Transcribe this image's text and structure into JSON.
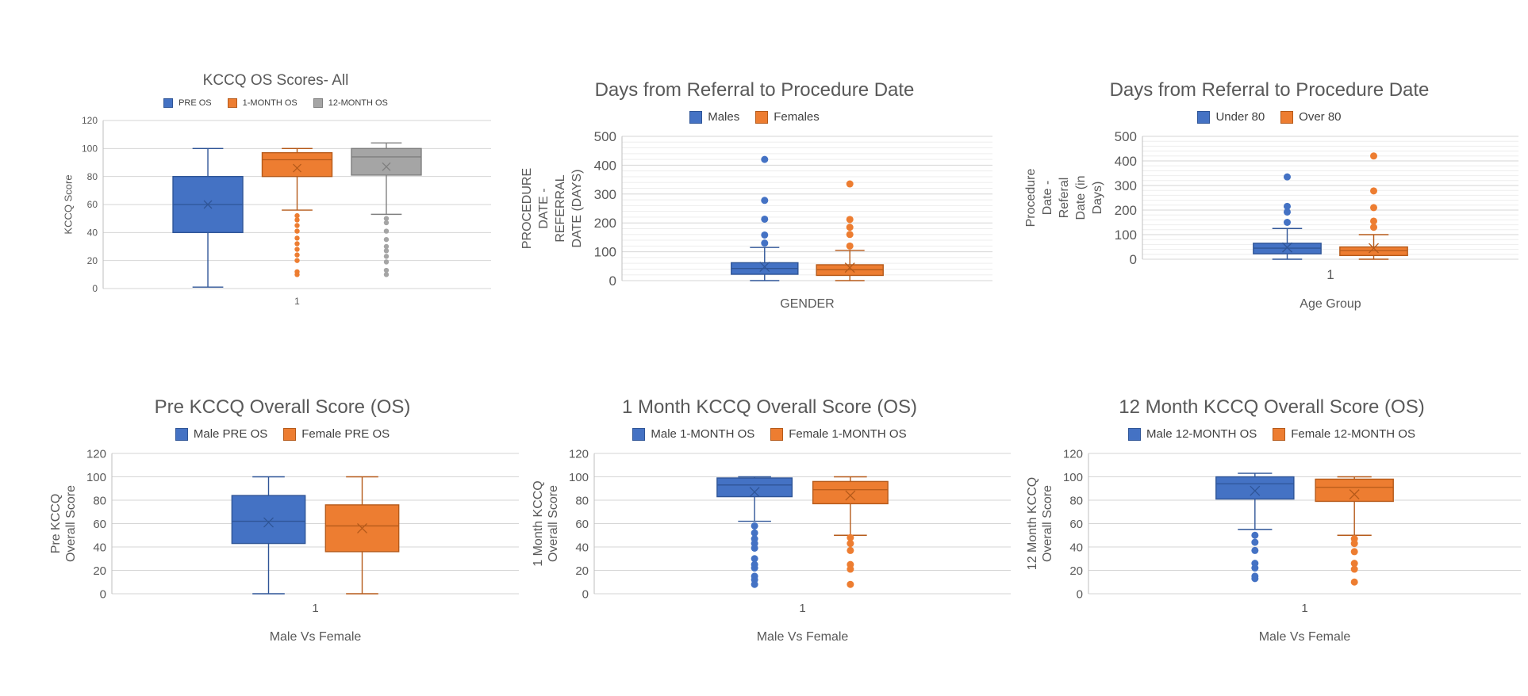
{
  "page": {
    "background": "#FFFFFF"
  },
  "colors": {
    "blue": "#4472C4",
    "blue_border": "#2F5597",
    "orange": "#ED7D31",
    "orange_border": "#B55A1A",
    "gray": "#A5A5A5",
    "gray_border": "#7F7F7F",
    "title_text": "#595959",
    "tick_text": "#595959",
    "legend_text": "#404040",
    "grid_major": "#D6D6D6",
    "grid_minor": "#EDEDED",
    "axis_line": "#BFBFBF"
  },
  "chart_data": [
    {
      "id": "kccq-all",
      "type": "boxplot",
      "title": "KCCQ OS Scores- All",
      "ylabel_lines": [
        "KCCQ Score"
      ],
      "xlabel": "",
      "x_tick": "1",
      "ylim": [
        0,
        120
      ],
      "ytick_step": 20,
      "minor_step": 0,
      "grid": true,
      "legend_position": "top",
      "series": [
        {
          "name": "PRE OS",
          "color_key": "blue",
          "q1": 40,
          "median": 60,
          "q3": 80,
          "mean": 60,
          "whisker_low": 1,
          "whisker_high": 100,
          "outliers": []
        },
        {
          "name": "1-MONTH OS",
          "color_key": "orange",
          "q1": 80,
          "median": 92,
          "q3": 97,
          "mean": 86,
          "whisker_low": 56,
          "whisker_high": 100,
          "outliers": [
            52,
            49,
            45,
            41,
            36,
            32,
            28,
            24,
            20,
            12,
            10
          ]
        },
        {
          "name": "12-MONTH OS",
          "color_key": "gray",
          "q1": 81,
          "median": 94,
          "q3": 100,
          "mean": 87,
          "whisker_low": 53,
          "whisker_high": 104,
          "outliers": [
            50,
            47,
            41,
            35,
            30,
            27,
            23,
            19,
            13,
            10
          ]
        }
      ]
    },
    {
      "id": "days-gender",
      "type": "boxplot",
      "title": "Days from Referral to Procedure Date",
      "ylabel_lines": [
        "PROCEDURE",
        "DATE -",
        "REFERRAL",
        "DATE (DAYS)"
      ],
      "xlabel": "GENDER",
      "x_tick": "",
      "ylim": [
        0,
        500
      ],
      "ytick_step": 100,
      "minor_step": 20,
      "grid": true,
      "legend_position": "top",
      "series": [
        {
          "name": "Males",
          "color_key": "blue",
          "q1": 22,
          "median": 42,
          "q3": 62,
          "mean": 48,
          "whisker_low": 0,
          "whisker_high": 115,
          "outliers": [
            420,
            278,
            213,
            158,
            130
          ]
        },
        {
          "name": "Females",
          "color_key": "orange",
          "q1": 18,
          "median": 38,
          "q3": 55,
          "mean": 45,
          "whisker_low": 0,
          "whisker_high": 105,
          "outliers": [
            335,
            212,
            185,
            160,
            120
          ]
        }
      ]
    },
    {
      "id": "days-age",
      "type": "boxplot",
      "title": "Days from Referral to Procedure Date",
      "ylabel_lines": [
        "Procedure",
        "Date -",
        "Referal",
        "Date (in",
        "Days)"
      ],
      "xlabel": "Age Group",
      "x_tick": "1",
      "ylim": [
        0,
        500
      ],
      "ytick_step": 100,
      "minor_step": 20,
      "grid": true,
      "legend_position": "top",
      "series": [
        {
          "name": "Under 80",
          "color_key": "blue",
          "q1": 22,
          "median": 45,
          "q3": 65,
          "mean": 48,
          "whisker_low": 0,
          "whisker_high": 125,
          "outliers": [
            335,
            215,
            192,
            150
          ]
        },
        {
          "name": "Over 80",
          "color_key": "orange",
          "q1": 15,
          "median": 35,
          "q3": 50,
          "mean": 45,
          "whisker_low": 0,
          "whisker_high": 100,
          "outliers": [
            420,
            278,
            210,
            155,
            130
          ]
        }
      ]
    },
    {
      "id": "pre-os",
      "type": "boxplot",
      "title": "Pre KCCQ Overall Score (OS)",
      "ylabel_lines": [
        "Pre KCCQ",
        "Overall Score"
      ],
      "xlabel": "Male Vs Female",
      "x_tick": "1",
      "ylim": [
        0,
        120
      ],
      "ytick_step": 20,
      "minor_step": 0,
      "grid": true,
      "legend_position": "top",
      "series": [
        {
          "name": "Male PRE OS",
          "color_key": "blue",
          "q1": 43,
          "median": 62,
          "q3": 84,
          "mean": 61,
          "whisker_low": 0,
          "whisker_high": 100,
          "outliers": []
        },
        {
          "name": "Female PRE OS",
          "color_key": "orange",
          "q1": 36,
          "median": 58,
          "q3": 76,
          "mean": 56,
          "whisker_low": 0,
          "whisker_high": 100,
          "outliers": []
        }
      ]
    },
    {
      "id": "one-month-os",
      "type": "boxplot",
      "title": "1 Month KCCQ Overall Score (OS)",
      "ylabel_lines": [
        "1 Month KCCQ",
        "Overall Score"
      ],
      "xlabel": "Male Vs Female",
      "x_tick": "1",
      "ylim": [
        0,
        120
      ],
      "ytick_step": 20,
      "minor_step": 0,
      "grid": true,
      "legend_position": "top",
      "series": [
        {
          "name": "Male 1-MONTH OS",
          "color_key": "blue",
          "q1": 83,
          "median": 93,
          "q3": 99,
          "mean": 87,
          "whisker_low": 62,
          "whisker_high": 100,
          "outliers": [
            58,
            52,
            47,
            43,
            39,
            30,
            25,
            22,
            15,
            12,
            8
          ]
        },
        {
          "name": "Female 1-MONTH OS",
          "color_key": "orange",
          "q1": 77,
          "median": 89,
          "q3": 96,
          "mean": 84,
          "whisker_low": 50,
          "whisker_high": 100,
          "outliers": [
            48,
            43,
            37,
            25,
            21,
            8
          ]
        }
      ]
    },
    {
      "id": "twelve-month-os",
      "type": "boxplot",
      "title": "12 Month KCCQ Overall Score (OS)",
      "ylabel_lines": [
        "12 Month KCCQ",
        "Overall Score"
      ],
      "xlabel": "Male Vs Female",
      "x_tick": "1",
      "ylim": [
        0,
        120
      ],
      "ytick_step": 20,
      "minor_step": 0,
      "grid": true,
      "legend_position": "top",
      "series": [
        {
          "name": "Male 12-MONTH OS",
          "color_key": "blue",
          "q1": 81,
          "median": 94,
          "q3": 100,
          "mean": 88,
          "whisker_low": 55,
          "whisker_high": 103,
          "outliers": [
            50,
            44,
            37,
            26,
            22,
            15,
            13
          ]
        },
        {
          "name": "Female 12-MONTH OS",
          "color_key": "orange",
          "q1": 79,
          "median": 91,
          "q3": 98,
          "mean": 85,
          "whisker_low": 50,
          "whisker_high": 100,
          "outliers": [
            47,
            43,
            36,
            26,
            21,
            10
          ]
        }
      ]
    }
  ]
}
